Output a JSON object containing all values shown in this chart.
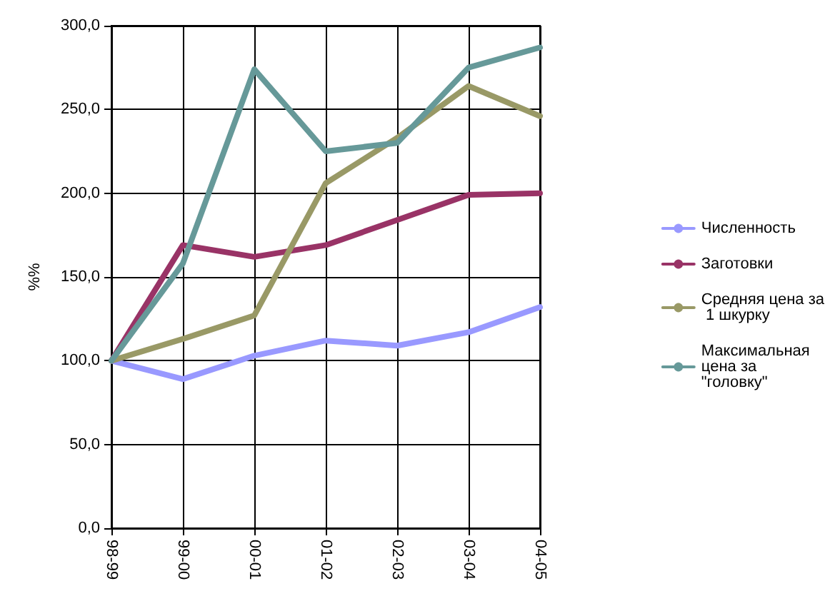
{
  "chart_data": {
    "type": "line",
    "ylabel": "%%",
    "categories": [
      "98-99",
      "99-00",
      "00-01",
      "01-02",
      "02-03",
      "03-04",
      "04-05"
    ],
    "series": [
      {
        "name": "Численность",
        "color": "#9999ff",
        "values": [
          100,
          89,
          103,
          112,
          109,
          117,
          132
        ]
      },
      {
        "name": "Заготовки",
        "color": "#993366",
        "values": [
          100,
          169,
          162,
          169,
          184,
          199,
          200
        ]
      },
      {
        "name": "Средняя цена за 1 шкурку",
        "color": "#999966",
        "values": [
          100,
          113,
          127,
          206,
          233,
          264,
          246
        ]
      },
      {
        "name": "Максимальная цена за \"головку\"",
        "color": "#669999",
        "values": [
          100,
          158,
          274,
          225,
          230,
          275,
          287
        ]
      }
    ],
    "ylim": [
      0,
      300
    ],
    "yticks": [
      {
        "value": 0,
        "label": "0,0"
      },
      {
        "value": 50,
        "label": "50,0"
      },
      {
        "value": 100,
        "label": "100,0"
      },
      {
        "value": 150,
        "label": "150,0"
      },
      {
        "value": 200,
        "label": "200,0"
      },
      {
        "value": 250,
        "label": "250,0"
      },
      {
        "value": 300,
        "label": "300,0"
      }
    ],
    "grid": true,
    "legend": "right",
    "marker": "none",
    "line_style": "solid"
  }
}
